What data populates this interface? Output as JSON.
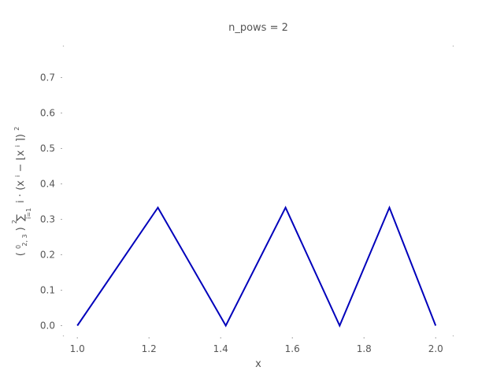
{
  "chart_data": {
    "type": "line",
    "title": "n_pows = 2",
    "xlabel": "x",
    "ylabel_parts": {
      "left": "(",
      "binom_top": "0",
      "binom_bottom": "2, 3",
      "right": ")",
      "sum_top": "2",
      "sum_bottom": "i=1",
      "body": "i · (x",
      "body_sup": "i",
      "body_mid": " − ⌊x",
      "body_sup2": "i",
      "body_end": "⌉)",
      "body_pow": "2"
    },
    "xlim": [
      0.96,
      2.05
    ],
    "ylim": [
      -0.03,
      0.79
    ],
    "xticks": [
      1.0,
      1.2,
      1.4,
      1.6,
      1.8,
      2.0
    ],
    "xtick_labels": [
      "1.0",
      "1.2",
      "1.4",
      "1.6",
      "1.8",
      "2.0"
    ],
    "yticks": [
      0.0,
      0.1,
      0.2,
      0.3,
      0.4,
      0.5,
      0.6,
      0.7
    ],
    "ytick_labels": [
      "0.0",
      "0.1",
      "0.2",
      "0.3",
      "0.4",
      "0.5",
      "0.6",
      "0.7"
    ],
    "grid": false,
    "series": [
      {
        "color": "#0000bb",
        "x": [
          1.0,
          1.2247,
          1.4142,
          1.5811,
          1.7321,
          1.8708,
          2.0
        ],
        "y": [
          0.0,
          0.333,
          0.0,
          0.333,
          0.0,
          0.333,
          0.0
        ]
      }
    ]
  }
}
